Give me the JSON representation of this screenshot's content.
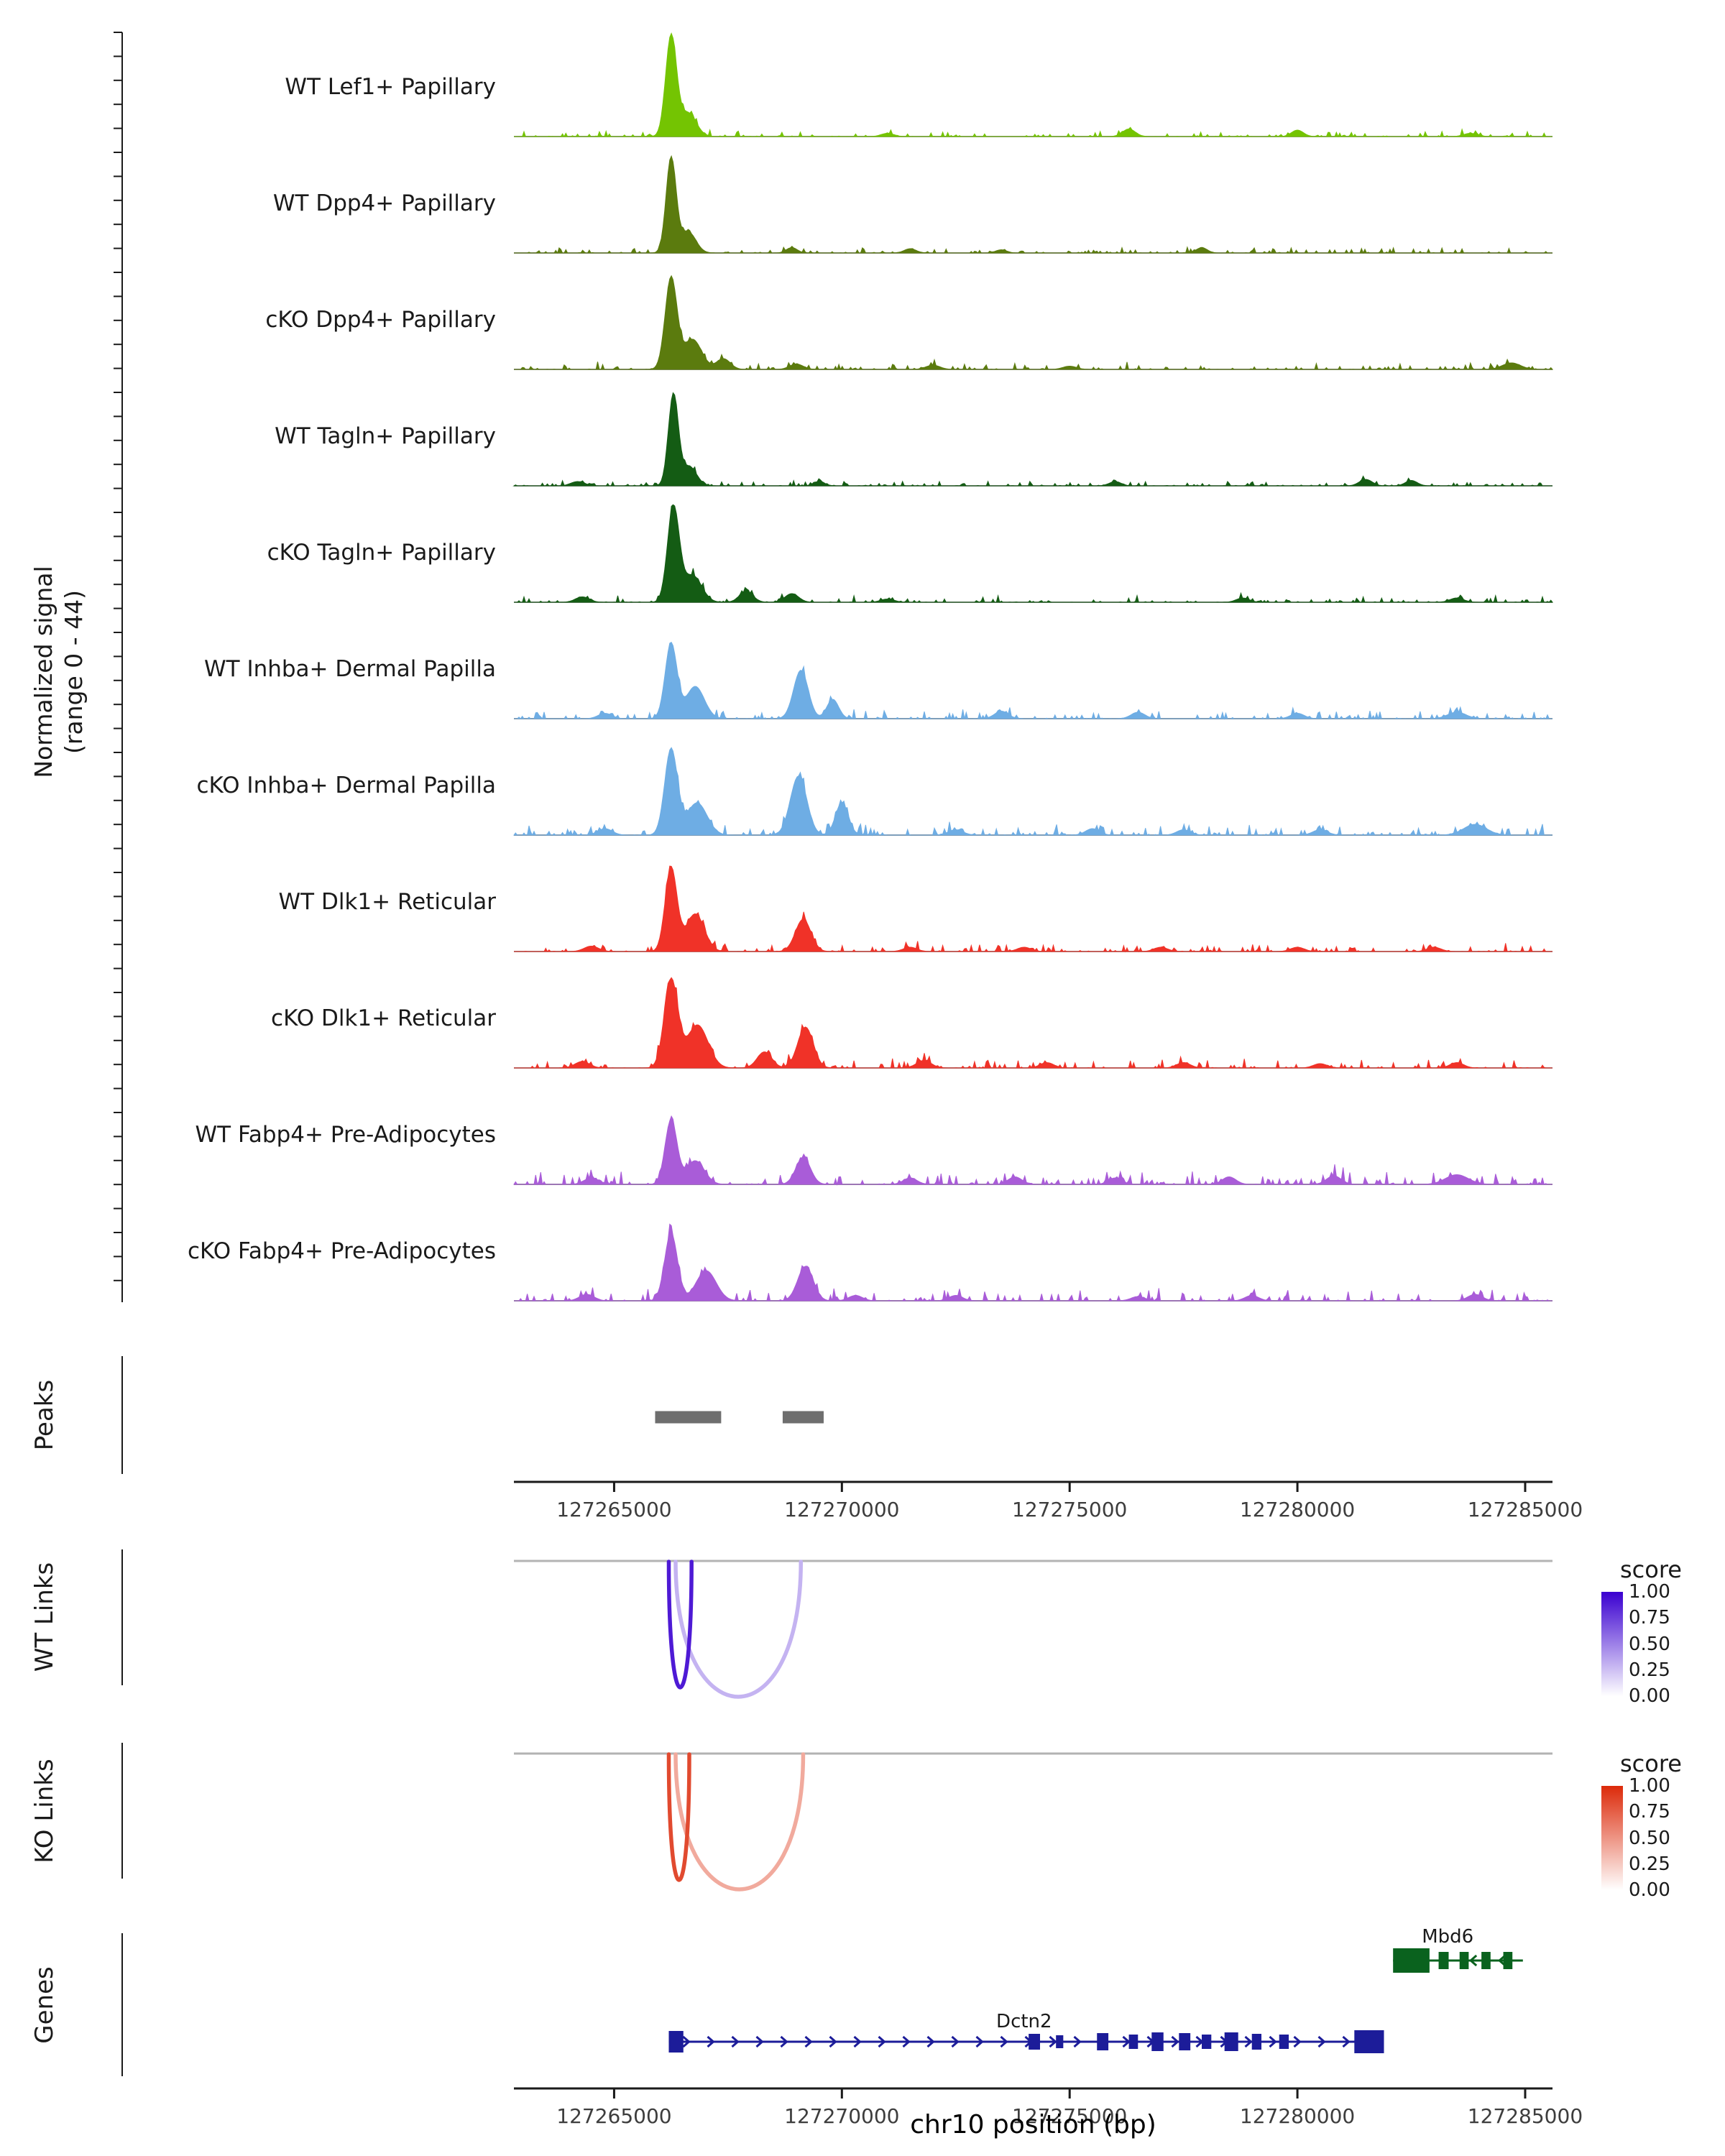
{
  "figure": {
    "y_axis_label": "Normalized signal\n(range 0 - 44)",
    "x_axis_label": "chr10 position (bp)",
    "section_labels": [
      "Peaks",
      "WT Links",
      "KO Links",
      "Genes"
    ]
  },
  "chart_data": {
    "type": "area",
    "description": "Genome browser coverage tracks, peak calls, co-accessibility links and gene models at chr10:127262800-127285600",
    "genome": {
      "chrom": "chr10",
      "xmin": 127262800,
      "xmax": 127285600,
      "axis_ticks": [
        127265000,
        127270000,
        127275000,
        127280000,
        127285000
      ],
      "axis_tick_labels": [
        "127265000",
        "127270000",
        "127275000",
        "127280000",
        "127285000"
      ]
    },
    "signal_range": [
      0,
      44
    ],
    "tracks": [
      {
        "label": "WT Lef1+ Papillary",
        "color": "#74C402",
        "noise": 0.02,
        "peaks": [
          [
            127266250,
            120,
            0.93
          ],
          [
            127266620,
            180,
            0.22
          ],
          [
            127271000,
            140,
            0.03
          ],
          [
            127276300,
            140,
            0.07
          ],
          [
            127280000,
            130,
            0.06
          ],
          [
            127283800,
            150,
            0.03
          ]
        ]
      },
      {
        "label": "WT Dpp4+ Papillary",
        "color": "#5B7B0E",
        "noise": 0.02,
        "peaks": [
          [
            127266250,
            110,
            0.88
          ],
          [
            127266620,
            170,
            0.2
          ],
          [
            127268900,
            120,
            0.05
          ],
          [
            127271500,
            130,
            0.04
          ],
          [
            127273500,
            120,
            0.03
          ],
          [
            127277900,
            120,
            0.05
          ]
        ]
      },
      {
        "label": "cKO Dpp4+ Papillary",
        "color": "#5B7B0E",
        "noise": 0.025,
        "peaks": [
          [
            127266250,
            130,
            0.85
          ],
          [
            127266720,
            200,
            0.28
          ],
          [
            127267400,
            150,
            0.1
          ],
          [
            127269000,
            150,
            0.05
          ],
          [
            127272000,
            150,
            0.04
          ],
          [
            127275000,
            150,
            0.03
          ],
          [
            127284700,
            200,
            0.06
          ]
        ]
      },
      {
        "label": "WT Tagln+ Papillary",
        "color": "#145C14",
        "noise": 0.02,
        "peaks": [
          [
            127266300,
            110,
            0.85
          ],
          [
            127266650,
            160,
            0.18
          ],
          [
            127264200,
            150,
            0.04
          ],
          [
            127269500,
            120,
            0.04
          ],
          [
            127276000,
            130,
            0.04
          ],
          [
            127281500,
            140,
            0.06
          ],
          [
            127282500,
            130,
            0.05
          ]
        ]
      },
      {
        "label": "cKO Tagln+ Papillary",
        "color": "#145C14",
        "noise": 0.025,
        "peaks": [
          [
            127266300,
            130,
            0.88
          ],
          [
            127266720,
            200,
            0.25
          ],
          [
            127264300,
            150,
            0.05
          ],
          [
            127267900,
            150,
            0.1
          ],
          [
            127268900,
            150,
            0.08
          ],
          [
            127271000,
            150,
            0.03
          ],
          [
            127278800,
            140,
            0.04
          ],
          [
            127283500,
            150,
            0.04
          ]
        ]
      },
      {
        "label": "WT Inhba+ Dermal Papilla",
        "color": "#6EADE4",
        "noise": 0.03,
        "peaks": [
          [
            127266250,
            130,
            0.7
          ],
          [
            127266780,
            200,
            0.3
          ],
          [
            127269100,
            160,
            0.45
          ],
          [
            127269800,
            130,
            0.18
          ],
          [
            127264800,
            150,
            0.05
          ],
          [
            127273500,
            150,
            0.07
          ],
          [
            127276500,
            150,
            0.06
          ],
          [
            127280000,
            150,
            0.05
          ],
          [
            127283500,
            200,
            0.06
          ]
        ]
      },
      {
        "label": "cKO Inhba+ Dermal Papilla",
        "color": "#6EADE4",
        "noise": 0.035,
        "peaks": [
          [
            127266250,
            140,
            0.8
          ],
          [
            127266820,
            220,
            0.3
          ],
          [
            127269050,
            180,
            0.55
          ],
          [
            127270000,
            140,
            0.3
          ],
          [
            127264800,
            160,
            0.06
          ],
          [
            127272500,
            160,
            0.05
          ],
          [
            127275500,
            150,
            0.06
          ],
          [
            127277500,
            150,
            0.05
          ],
          [
            127280500,
            160,
            0.05
          ],
          [
            127283900,
            250,
            0.1
          ]
        ]
      },
      {
        "label": "WT Dlk1+ Reticular",
        "color": "#F03228",
        "noise": 0.03,
        "peaks": [
          [
            127266250,
            130,
            0.78
          ],
          [
            127266780,
            200,
            0.35
          ],
          [
            127269150,
            170,
            0.3
          ],
          [
            127264500,
            160,
            0.05
          ],
          [
            127271500,
            150,
            0.04
          ],
          [
            127274000,
            150,
            0.04
          ],
          [
            127277000,
            150,
            0.04
          ],
          [
            127280000,
            150,
            0.04
          ],
          [
            127283000,
            150,
            0.04
          ]
        ]
      },
      {
        "label": "cKO Dlk1+ Reticular",
        "color": "#F03228",
        "noise": 0.035,
        "peaks": [
          [
            127266250,
            150,
            0.82
          ],
          [
            127266830,
            230,
            0.4
          ],
          [
            127268300,
            160,
            0.15
          ],
          [
            127269200,
            170,
            0.38
          ],
          [
            127264300,
            160,
            0.06
          ],
          [
            127271800,
            160,
            0.07
          ],
          [
            127274500,
            150,
            0.05
          ],
          [
            127277500,
            150,
            0.05
          ],
          [
            127280500,
            150,
            0.04
          ],
          [
            127283500,
            150,
            0.05
          ]
        ]
      },
      {
        "label": "WT Fabp4+ Pre-Adipocytes",
        "color": "#A95CD8",
        "noise": 0.045,
        "peaks": [
          [
            127266250,
            130,
            0.6
          ],
          [
            127266780,
            200,
            0.22
          ],
          [
            127269150,
            160,
            0.25
          ],
          [
            127264500,
            160,
            0.06
          ],
          [
            127271500,
            150,
            0.06
          ],
          [
            127273800,
            150,
            0.07
          ],
          [
            127276000,
            150,
            0.06
          ],
          [
            127278500,
            150,
            0.07
          ],
          [
            127280800,
            160,
            0.08
          ],
          [
            127283500,
            250,
            0.09
          ]
        ]
      },
      {
        "label": "cKO Fabp4+ Pre-Adipocytes",
        "color": "#A95CD8",
        "noise": 0.04,
        "peaks": [
          [
            127266250,
            140,
            0.63
          ],
          [
            127267020,
            220,
            0.28
          ],
          [
            127269200,
            170,
            0.32
          ],
          [
            127264400,
            160,
            0.06
          ],
          [
            127270300,
            150,
            0.05
          ],
          [
            127272500,
            150,
            0.05
          ],
          [
            127276500,
            150,
            0.04
          ],
          [
            127279000,
            150,
            0.05
          ],
          [
            127283900,
            160,
            0.06
          ]
        ]
      }
    ],
    "peaks_track": [
      [
        127265900,
        127267350
      ],
      [
        127268700,
        127269600
      ]
    ],
    "links": {
      "wt": {
        "base_color": "#3A00D0",
        "arcs": [
          [
            127266350,
            127269100,
            0.3
          ],
          [
            127266200,
            127266700,
            0.9
          ]
        ]
      },
      "ko": {
        "base_color": "#DC2A0A",
        "arcs": [
          [
            127266350,
            127269150,
            0.4
          ],
          [
            127266200,
            127266650,
            0.85
          ]
        ]
      },
      "legend_title": "score",
      "legend_ticks": [
        "1.00",
        "0.75",
        "0.50",
        "0.25",
        "0.00"
      ]
    },
    "genes": [
      {
        "name": "Mbd6",
        "strand": "-",
        "color": "#0A621E",
        "start": 127282100,
        "end": 127284950,
        "label_bp": 127283300,
        "exons": [
          [
            127282100,
            127282900,
            34
          ],
          [
            127283100,
            127283320,
            24
          ],
          [
            127283560,
            127283760,
            24
          ],
          [
            127284040,
            127284240,
            24
          ],
          [
            127284520,
            127284720,
            24
          ]
        ]
      },
      {
        "name": "Dctn2",
        "strand": "+",
        "color": "#1C1C99",
        "start": 127266200,
        "end": 127281900,
        "label_bp": 127274000,
        "exons": [
          [
            127266200,
            127266520,
            30
          ],
          [
            127274100,
            127274350,
            22
          ],
          [
            127274700,
            127274860,
            18
          ],
          [
            127275600,
            127275850,
            24
          ],
          [
            127276300,
            127276500,
            20
          ],
          [
            127276800,
            127277060,
            26
          ],
          [
            127277400,
            127277650,
            24
          ],
          [
            127277900,
            127278110,
            20
          ],
          [
            127278400,
            127278700,
            26
          ],
          [
            127279000,
            127279210,
            22
          ],
          [
            127279600,
            127279810,
            20
          ],
          [
            127281250,
            127281900,
            32
          ]
        ]
      }
    ]
  }
}
